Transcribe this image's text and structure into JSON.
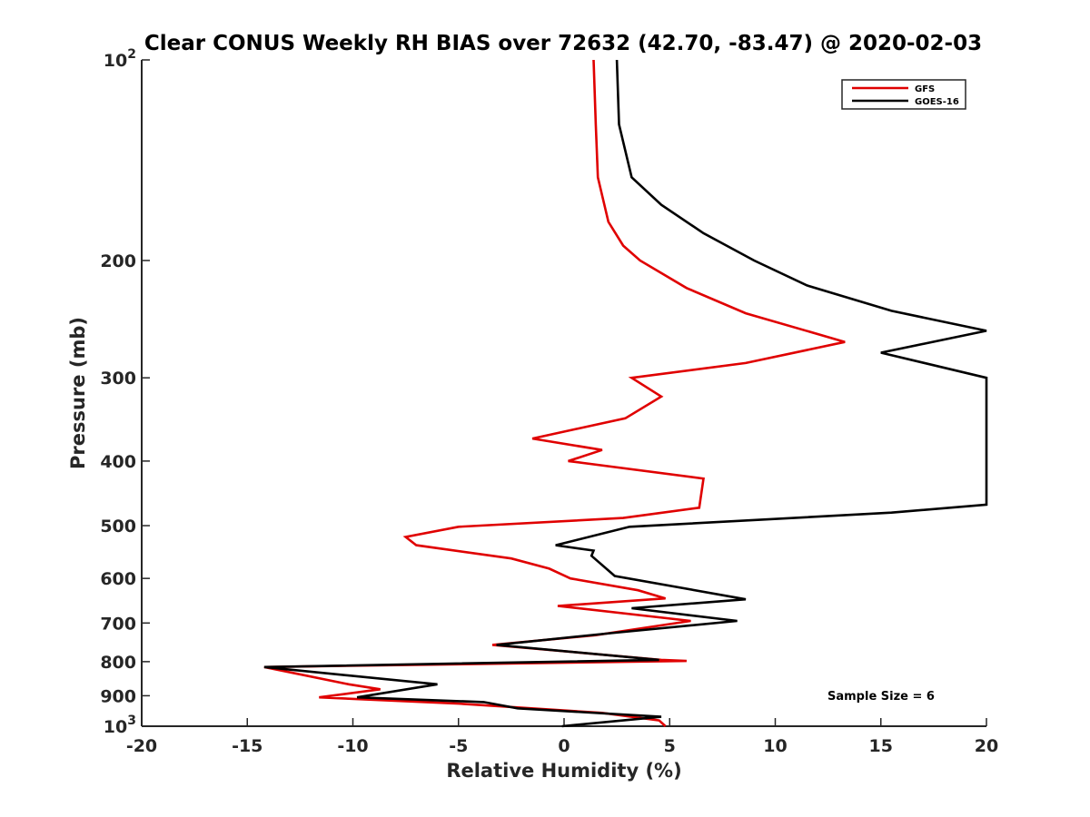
{
  "chart_data": {
    "type": "line",
    "title": "Clear CONUS Weekly RH BIAS over 72632 (42.70, -83.47) @ 2020-02-03",
    "xlabel": "Relative Humidity (%)",
    "ylabel": "Pressure (mb)",
    "xlim": [
      -20,
      20
    ],
    "ylim": [
      100,
      1000
    ],
    "y_scale": "log",
    "y_reversed": true,
    "grid": false,
    "legend_position": "top-right",
    "x_ticks": [
      "-20",
      "-15",
      "-10",
      "-5",
      "0",
      "5",
      "10",
      "15",
      "20"
    ],
    "y_tick_labels": [
      {
        "value": 100,
        "base": "10",
        "exp": "2"
      },
      {
        "value": 200,
        "label": "200"
      },
      {
        "value": 300,
        "label": "300"
      },
      {
        "value": 400,
        "label": "400"
      },
      {
        "value": 500,
        "label": "500"
      },
      {
        "value": 600,
        "label": "600"
      },
      {
        "value": 700,
        "label": "700"
      },
      {
        "value": 800,
        "label": "800"
      },
      {
        "value": 900,
        "label": "900"
      },
      {
        "value": 1000,
        "base": "10",
        "exp": "3"
      }
    ],
    "annotation": "Sample Size = 6",
    "series": [
      {
        "name": "GFS",
        "color": "#e00000",
        "points": [
          [
            1.4,
            100
          ],
          [
            1.5,
            125
          ],
          [
            1.6,
            150
          ],
          [
            2.1,
            175
          ],
          [
            2.8,
            190
          ],
          [
            3.6,
            200
          ],
          [
            5.8,
            220
          ],
          [
            8.6,
            240
          ],
          [
            13.3,
            265
          ],
          [
            8.6,
            285
          ],
          [
            3.2,
            300
          ],
          [
            4.6,
            320
          ],
          [
            2.9,
            345
          ],
          [
            -1.5,
            370
          ],
          [
            1.8,
            385
          ],
          [
            0.2,
            400
          ],
          [
            6.6,
            425
          ],
          [
            6.4,
            470
          ],
          [
            2.8,
            487
          ],
          [
            -5.0,
            502
          ],
          [
            -7.5,
            520
          ],
          [
            -7.0,
            535
          ],
          [
            -2.5,
            560
          ],
          [
            -0.7,
            580
          ],
          [
            0.3,
            600
          ],
          [
            3.5,
            625
          ],
          [
            4.8,
            643
          ],
          [
            -0.3,
            660
          ],
          [
            6.0,
            695
          ],
          [
            1.5,
            730
          ],
          [
            -3.4,
            755
          ],
          [
            4.6,
            795
          ],
          [
            5.8,
            798
          ],
          [
            -14.2,
            815
          ],
          [
            -10.2,
            865
          ],
          [
            -8.7,
            880
          ],
          [
            -11.6,
            905
          ],
          [
            -5.0,
            925
          ],
          [
            1.8,
            955
          ],
          [
            4.5,
            980
          ],
          [
            4.8,
            1000
          ]
        ]
      },
      {
        "name": "GOES-16",
        "color": "#000000",
        "points": [
          [
            2.5,
            100
          ],
          [
            2.6,
            125
          ],
          [
            3.2,
            150
          ],
          [
            4.6,
            165
          ],
          [
            6.6,
            182
          ],
          [
            9.0,
            200
          ],
          [
            11.5,
            218
          ],
          [
            15.5,
            238
          ],
          [
            20.0,
            255
          ],
          [
            15.0,
            275
          ],
          [
            20.0,
            300
          ],
          [
            20.0,
            465
          ],
          [
            15.5,
            478
          ],
          [
            3.1,
            502
          ],
          [
            -0.4,
            535
          ],
          [
            1.4,
            545
          ],
          [
            1.3,
            555
          ],
          [
            2.4,
            595
          ],
          [
            8.6,
            645
          ],
          [
            3.2,
            665
          ],
          [
            8.2,
            695
          ],
          [
            2.2,
            725
          ],
          [
            -3.2,
            755
          ],
          [
            4.5,
            795
          ],
          [
            -14.2,
            815
          ],
          [
            -6.0,
            865
          ],
          [
            -9.8,
            905
          ],
          [
            -3.8,
            920
          ],
          [
            -2.2,
            940
          ],
          [
            4.6,
            968
          ],
          [
            -0.1,
            1000
          ]
        ]
      }
    ]
  }
}
